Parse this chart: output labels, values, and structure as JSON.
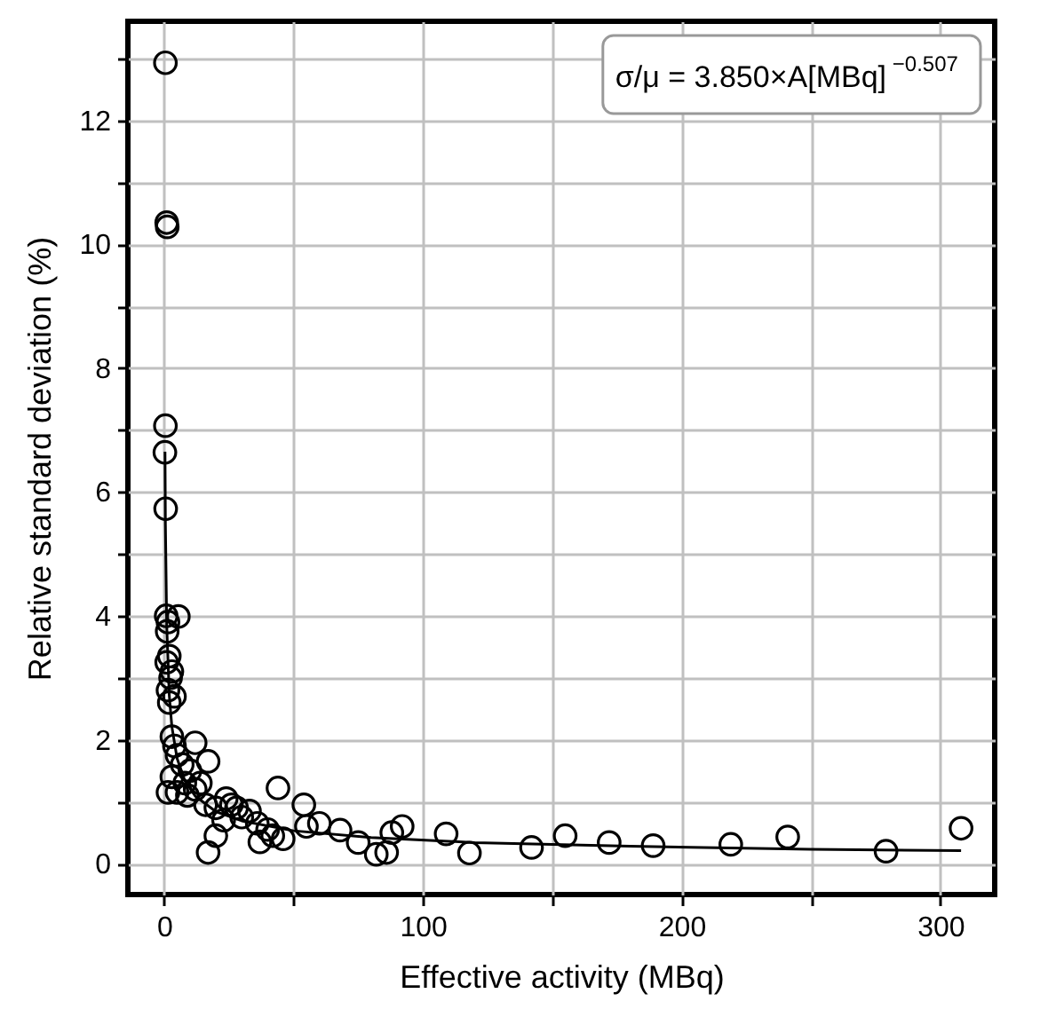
{
  "chart_data": {
    "type": "scatter",
    "xlabel": "Effective activity (MBq)",
    "ylabel": "Relative standard deviation (%)",
    "annotations": [
      "σ/μ = 3.850×A[MBq]$^{−0.507}$"
    ],
    "xlim": [
      -14,
      321
    ],
    "ylim": [
      -0.5,
      13.6
    ],
    "xticks": [
      0,
      {
        "value": 50,
        "label": null
      },
      100,
      {
        "value": 150,
        "label": null
      },
      200,
      {
        "value": 250,
        "label": null
      },
      300
    ],
    "yticks": [
      0,
      {
        "value": 1,
        "label": null
      },
      2,
      {
        "value": 3,
        "label": null
      },
      4,
      {
        "value": 5,
        "label": null
      },
      6,
      {
        "value": 7,
        "label": null
      },
      8,
      {
        "value": 9,
        "label": null
      },
      10,
      {
        "value": 11,
        "label": null
      },
      12,
      {
        "value": 13,
        "label": null
      }
    ],
    "grid": true,
    "marker": "circle",
    "series": [
      {
        "color": "#000000",
        "x": [
          0.5,
          1.0,
          1.2,
          0.5,
          0.3,
          0.6,
          0.8,
          1.5,
          5.5,
          1.2,
          2.0,
          1.0,
          3.0,
          2.5,
          1.5,
          2.0,
          4.0,
          3.0,
          4.0,
          12,
          5,
          7,
          17,
          10,
          3,
          14,
          8,
          1.5,
          5,
          9,
          12,
          16,
          20,
          24,
          26,
          28,
          33,
          30,
          23,
          36,
          40,
          44,
          42,
          37,
          20,
          17,
          54,
          55,
          60,
          46,
          68,
          75,
          82,
          86,
          88,
          92,
          109,
          118,
          142,
          155,
          172,
          189,
          219,
          241,
          279,
          308
        ],
        "values": [
          12.93,
          10.35,
          10.28,
          7.07,
          6.64,
          5.73,
          4.0,
          3.9,
          3.99,
          3.75,
          3.35,
          3.25,
          3.1,
          3.0,
          2.8,
          2.6,
          2.7,
          2.05,
          1.9,
          1.95,
          1.75,
          1.6,
          1.65,
          1.5,
          1.4,
          1.3,
          1.3,
          1.15,
          1.15,
          1.1,
          1.2,
          0.95,
          0.9,
          1.05,
          0.95,
          0.9,
          0.85,
          0.75,
          0.7,
          0.65,
          0.55,
          1.22,
          0.45,
          0.35,
          0.45,
          0.18,
          0.95,
          0.6,
          0.65,
          0.4,
          0.54,
          0.34,
          0.15,
          0.18,
          0.5,
          0.6,
          0.48,
          0.17,
          0.26,
          0.45,
          0.34,
          0.29,
          0.31,
          0.43,
          0.2,
          0.57
        ]
      },
      {
        "type": "line",
        "color": "#000000",
        "marker": "none",
        "line_style": "solid",
        "x": [
          0.34,
          0.5,
          1,
          2,
          3,
          5,
          8,
          12,
          20,
          30,
          50,
          80,
          120,
          180,
          250,
          308
        ],
        "values": [
          6.65,
          5.47,
          3.85,
          2.71,
          2.21,
          1.7,
          1.34,
          1.09,
          0.84,
          0.69,
          0.53,
          0.42,
          0.34,
          0.28,
          0.23,
          0.21
        ]
      }
    ]
  }
}
